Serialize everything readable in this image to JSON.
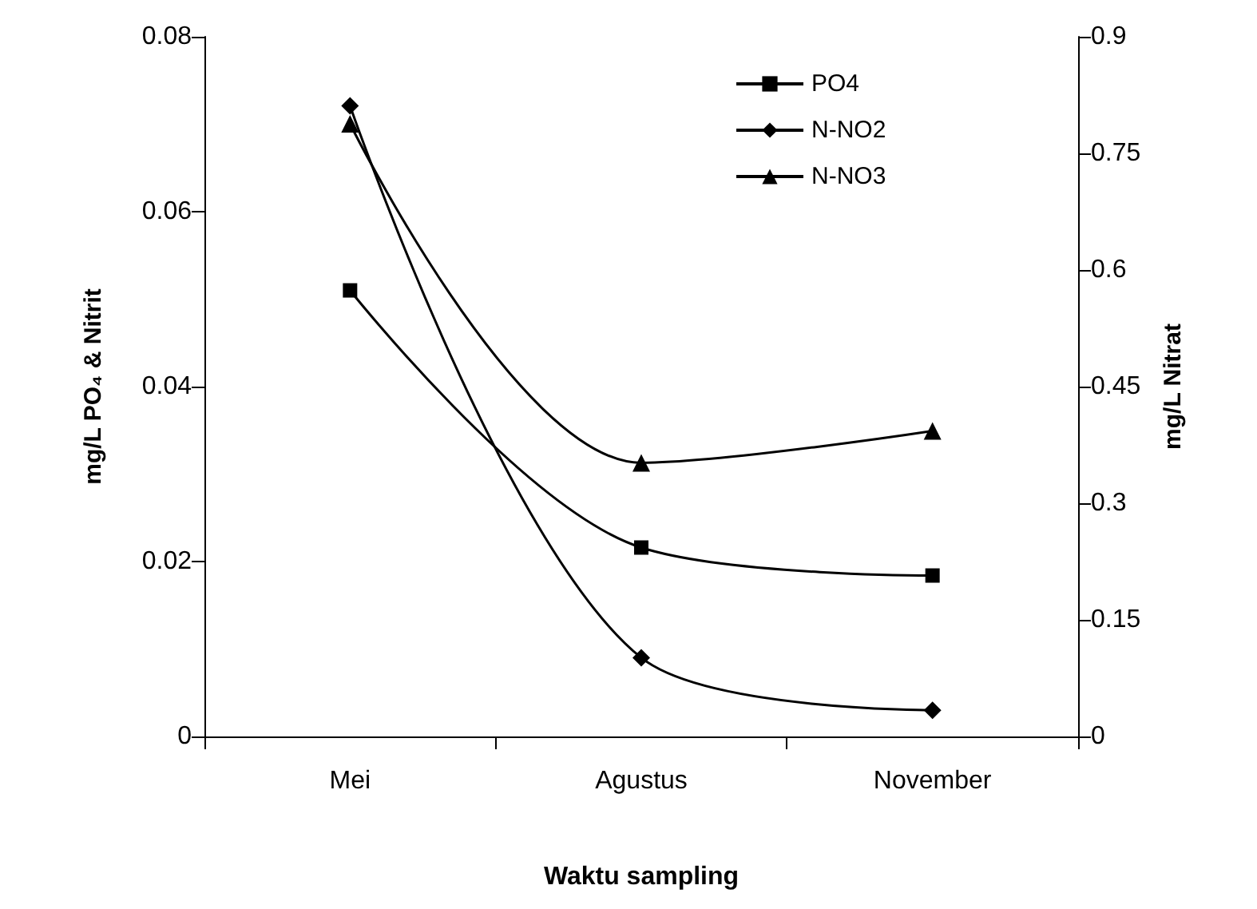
{
  "chart_data": {
    "type": "line",
    "xlabel": "Waktu sampling",
    "ylabel": "mg/L PO₄ & Nitrit",
    "y2label": "mg/L Nitrat",
    "categories": [
      "Mei",
      "Agustus",
      "November"
    ],
    "series": [
      {
        "name": "PO4",
        "color": "#000000",
        "marker": "square",
        "values": [
          0.051,
          0.0216,
          0.0184
        ]
      },
      {
        "name": "N-NO2",
        "color": "#000000",
        "marker": "diamond",
        "values": [
          0.0721,
          0.009,
          0.003
        ]
      },
      {
        "name": "N-NO3",
        "color": "#000000",
        "marker": "triangle",
        "axis": "y2",
        "values": [
          0.788,
          0.352,
          0.393
        ]
      }
    ],
    "ylim": [
      0,
      0.08
    ],
    "yticks": [
      0,
      0.02,
      0.04,
      0.06,
      0.08
    ],
    "y2lim": [
      0,
      0.9
    ],
    "y2ticks": [
      0,
      0.15,
      0.3,
      0.45,
      0.6,
      0.75,
      0.9
    ],
    "grid": false,
    "legend": "top right",
    "line_style": "solid"
  }
}
